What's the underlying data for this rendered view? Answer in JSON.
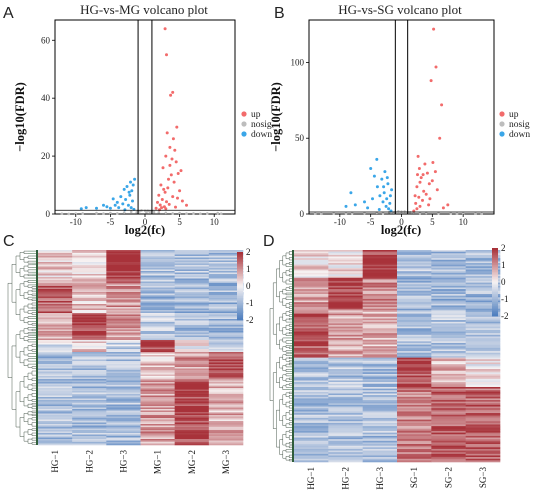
{
  "panels": {
    "A": {
      "label": "A",
      "title": "HG-vs-MG volcano plot"
    },
    "B": {
      "label": "B",
      "title": "HG-vs-SG volcano plot"
    },
    "C": {
      "label": "C"
    },
    "D": {
      "label": "D"
    }
  },
  "legend": [
    {
      "name": "up",
      "color": "#f26b6b"
    },
    {
      "name": "nosig",
      "color": "#bdbdbd"
    },
    {
      "name": "down",
      "color": "#3aa6e8"
    }
  ],
  "colorbar_ticks": [
    "2",
    "1",
    "0",
    "-1",
    "-2"
  ],
  "heatmap_colors": {
    "high": "#a8323a",
    "mid": "#f7f3f3",
    "low": "#4f7fbf",
    "accent": "#e8a9d6"
  },
  "chart_data": [
    {
      "type": "scatter",
      "title": "HG-vs-MG volcano plot",
      "xlabel": "log2(fc)",
      "ylabel": "−log10(FDR)",
      "xlim": [
        -13,
        13
      ],
      "ylim": [
        0,
        67
      ],
      "xticks": [
        "-10",
        "-5",
        "0",
        "5",
        "10"
      ],
      "yticks": [
        "0",
        "20",
        "40",
        "60"
      ],
      "threshold_lines": {
        "x": [
          -1,
          1
        ],
        "y": 1.3
      },
      "grid": false,
      "legend_position": "right",
      "series": [
        {
          "name": "up",
          "points": [
            [
              2.1,
              1.5
            ],
            [
              2.4,
              2.2
            ],
            [
              2.2,
              3.1
            ],
            [
              2.8,
              2.5
            ],
            [
              3.1,
              4.2
            ],
            [
              2.5,
              5.0
            ],
            [
              3.5,
              3.3
            ],
            [
              4.0,
              6.0
            ],
            [
              2.9,
              7.5
            ],
            [
              3.3,
              9.0
            ],
            [
              4.2,
              11.0
            ],
            [
              3.8,
              13.5
            ],
            [
              2.6,
              16.0
            ],
            [
              4.5,
              18.0
            ],
            [
              3.0,
              20.0
            ],
            [
              3.6,
              23.0
            ],
            [
              4.1,
              26.0
            ],
            [
              3.2,
              28.0
            ],
            [
              4.6,
              30.0
            ],
            [
              3.4,
              12.0
            ],
            [
              5.0,
              8.0
            ],
            [
              4.8,
              14.0
            ],
            [
              3.9,
              19.0
            ],
            [
              2.3,
              10.0
            ],
            [
              5.4,
              4.5
            ],
            [
              6.0,
              3.0
            ],
            [
              4.4,
              2.4
            ],
            [
              3.7,
              41.0
            ],
            [
              4.0,
              42.0
            ],
            [
              2.9,
              64.0
            ],
            [
              3.1,
              55.0
            ],
            [
              5.2,
              15.0
            ],
            [
              4.3,
              22.0
            ],
            [
              2.0,
              6.5
            ],
            [
              1.6,
              2.0
            ],
            [
              1.8,
              4.0
            ],
            [
              2.7,
              8.5
            ],
            [
              3.0,
              1.8
            ],
            [
              4.7,
              5.5
            ],
            [
              3.6,
              16.8
            ]
          ]
        },
        {
          "name": "nosig",
          "points": [
            [
              -12,
              0.1
            ],
            [
              -9,
              0.2
            ],
            [
              -7,
              0.3
            ],
            [
              -5,
              0.3
            ],
            [
              -3,
              0.5
            ],
            [
              -2,
              0.8
            ],
            [
              -1,
              1.0
            ],
            [
              0,
              1.1
            ],
            [
              1,
              0.9
            ],
            [
              2,
              0.6
            ],
            [
              3,
              0.4
            ],
            [
              5,
              0.3
            ],
            [
              7,
              0.2
            ],
            [
              9,
              0.2
            ],
            [
              11,
              0.1
            ],
            [
              -0.5,
              1.2
            ],
            [
              0.4,
              1.1
            ],
            [
              -0.8,
              0.9
            ],
            [
              0.7,
              0.8
            ],
            [
              -1.2,
              0.6
            ],
            [
              1.3,
              0.7
            ],
            [
              -4,
              0.2
            ],
            [
              4,
              0.2
            ],
            [
              6,
              0.15
            ],
            [
              -6,
              0.15
            ],
            [
              8,
              0.1
            ],
            [
              -10,
              0.1
            ],
            [
              10.5,
              0.3
            ],
            [
              -11,
              0.05
            ],
            [
              0.2,
              0.6
            ]
          ]
        },
        {
          "name": "down",
          "points": [
            [
              -1.6,
              1.6
            ],
            [
              -2.0,
              2.2
            ],
            [
              -2.4,
              3.0
            ],
            [
              -1.8,
              4.5
            ],
            [
              -2.8,
              5.0
            ],
            [
              -3.2,
              3.5
            ],
            [
              -2.2,
              6.5
            ],
            [
              -3.5,
              6.0
            ],
            [
              -1.9,
              8.0
            ],
            [
              -2.6,
              9.5
            ],
            [
              -4.0,
              4.0
            ],
            [
              -4.6,
              5.2
            ],
            [
              -3.0,
              8.5
            ],
            [
              -2.1,
              11.0
            ],
            [
              -1.5,
              12.0
            ],
            [
              -5.5,
              2.5
            ],
            [
              -6.0,
              3.0
            ],
            [
              -7.0,
              2.0
            ],
            [
              -8.5,
              2.2
            ],
            [
              -9.2,
              1.8
            ],
            [
              -3.8,
              2.2
            ],
            [
              -2.9,
              1.5
            ],
            [
              -1.7,
              10.0
            ],
            [
              -2.3,
              7.5
            ],
            [
              -4.3,
              3.0
            ],
            [
              -5.0,
              2.0
            ]
          ]
        }
      ]
    },
    {
      "type": "scatter",
      "title": "HG-vs-SG volcano plot",
      "xlabel": "log2(fc)",
      "ylabel": "−log10(FDR)",
      "xlim": [
        -15,
        15
      ],
      "ylim": [
        0,
        128
      ],
      "xticks": [
        "-10",
        "-5",
        "0",
        "5",
        "10"
      ],
      "yticks": [
        "0",
        "50",
        "100"
      ],
      "threshold_lines": {
        "x": [
          -1,
          1
        ],
        "y": 1.3
      },
      "grid": false,
      "legend_position": "right",
      "series": [
        {
          "name": "up",
          "points": [
            [
              2.0,
              2.0
            ],
            [
              2.5,
              3.5
            ],
            [
              3.0,
              5.0
            ],
            [
              2.3,
              7.0
            ],
            [
              3.4,
              9.0
            ],
            [
              2.8,
              11.0
            ],
            [
              4.0,
              13.0
            ],
            [
              3.6,
              15.0
            ],
            [
              2.5,
              18.0
            ],
            [
              4.5,
              20.0
            ],
            [
              3.2,
              24.0
            ],
            [
              5.0,
              22.0
            ],
            [
              4.2,
              27.0
            ],
            [
              2.9,
              30.0
            ],
            [
              5.5,
              28.0
            ],
            [
              3.8,
              33.0
            ],
            [
              2.7,
              38.0
            ],
            [
              4.6,
              10.0
            ],
            [
              5.8,
              16.0
            ],
            [
              6.2,
              50.0
            ],
            [
              6.5,
              72.0
            ],
            [
              4.8,
              88.0
            ],
            [
              5.6,
              97.0
            ],
            [
              5.2,
              122.0
            ],
            [
              3.5,
              26.0
            ],
            [
              4.4,
              6.0
            ],
            [
              6.8,
              4.0
            ],
            [
              7.5,
              6.0
            ],
            [
              2.2,
              12.0
            ],
            [
              3.0,
              21.0
            ],
            [
              2.6,
              26.0
            ],
            [
              5.1,
              34.0
            ]
          ]
        },
        {
          "name": "nosig",
          "points": [
            [
              -14,
              0.2
            ],
            [
              -11,
              0.4
            ],
            [
              -8,
              0.5
            ],
            [
              -6,
              0.6
            ],
            [
              -4,
              0.8
            ],
            [
              -2,
              1.2
            ],
            [
              -1,
              1.4
            ],
            [
              0,
              1.5
            ],
            [
              1,
              1.3
            ],
            [
              2,
              1.0
            ],
            [
              4,
              0.7
            ],
            [
              6,
              0.5
            ],
            [
              8,
              0.4
            ],
            [
              10,
              0.3
            ],
            [
              12,
              0.2
            ],
            [
              -0.5,
              1.8
            ],
            [
              0.5,
              1.6
            ],
            [
              -1.3,
              1.0
            ],
            [
              1.4,
              1.1
            ],
            [
              -3,
              0.5
            ],
            [
              3,
              0.6
            ],
            [
              9,
              0.2
            ],
            [
              -9,
              0.3
            ],
            [
              -13,
              0.1
            ],
            [
              13,
              0.1
            ]
          ]
        },
        {
          "name": "down",
          "points": [
            [
              -1.7,
              2.0
            ],
            [
              -2.1,
              3.5
            ],
            [
              -2.5,
              5.0
            ],
            [
              -1.9,
              7.0
            ],
            [
              -3.0,
              8.0
            ],
            [
              -2.4,
              10.0
            ],
            [
              -3.5,
              12.0
            ],
            [
              -2.8,
              14.0
            ],
            [
              -1.6,
              16.0
            ],
            [
              -3.9,
              18.0
            ],
            [
              -2.2,
              20.0
            ],
            [
              -3.2,
              23.0
            ],
            [
              -4.4,
              25.0
            ],
            [
              -2.7,
              28.0
            ],
            [
              -5.0,
              30.0
            ],
            [
              -4.0,
              36.0
            ],
            [
              -1.8,
              12.0
            ],
            [
              -6.0,
              8.0
            ],
            [
              -7.5,
              6.0
            ],
            [
              -8.2,
              14.0
            ],
            [
              -9.0,
              5.0
            ],
            [
              -5.5,
              4.0
            ],
            [
              -3.6,
              3.0
            ],
            [
              -2.9,
              18.0
            ],
            [
              -2.3,
              24.0
            ],
            [
              -4.7,
              10.0
            ]
          ]
        }
      ]
    },
    {
      "type": "heatmap",
      "columns": [
        "HG−1",
        "HG−2",
        "HG−3",
        "MG−1",
        "MG−2",
        "MG−3"
      ],
      "colorbar_range": [
        -2,
        2
      ],
      "block_means": [
        {
          "rows": 0.17,
          "values": [
            0.4,
            0.3,
            2.0,
            -0.8,
            -0.9,
            -0.9
          ]
        },
        {
          "rows": 0.15,
          "values": [
            1.5,
            0.5,
            0.9,
            -1.0,
            -1.0,
            -1.0
          ]
        },
        {
          "rows": 0.14,
          "values": [
            0.6,
            1.9,
            0.9,
            -0.7,
            -0.9,
            -1.0
          ]
        },
        {
          "rows": 0.06,
          "values": [
            -0.3,
            0.4,
            -0.6,
            1.8,
            0.0,
            -0.4
          ]
        },
        {
          "rows": 0.14,
          "values": [
            -0.9,
            -0.8,
            -0.8,
            0.5,
            0.9,
            1.7
          ]
        },
        {
          "rows": 0.34,
          "values": [
            -0.9,
            -0.9,
            -0.9,
            0.9,
            1.8,
            0.7
          ]
        }
      ]
    },
    {
      "type": "heatmap",
      "columns": [
        "HG−1",
        "HG−2",
        "HG−3",
        "SG−1",
        "SG−2",
        "SG−3"
      ],
      "colorbar_range": [
        -2,
        2
      ],
      "block_means": [
        {
          "rows": 0.13,
          "values": [
            0.3,
            0.2,
            1.9,
            -0.8,
            -0.9,
            -0.9
          ]
        },
        {
          "rows": 0.15,
          "values": [
            0.9,
            1.8,
            1.1,
            -1.0,
            -1.0,
            -1.0
          ]
        },
        {
          "rows": 0.22,
          "values": [
            1.6,
            0.8,
            0.7,
            -0.9,
            -0.8,
            -0.9
          ]
        },
        {
          "rows": 0.14,
          "values": [
            -0.8,
            -0.8,
            -0.9,
            1.7,
            0.6,
            0.1
          ]
        },
        {
          "rows": 0.36,
          "values": [
            -0.9,
            -0.9,
            -0.9,
            1.2,
            1.6,
            1.5
          ]
        }
      ]
    }
  ]
}
